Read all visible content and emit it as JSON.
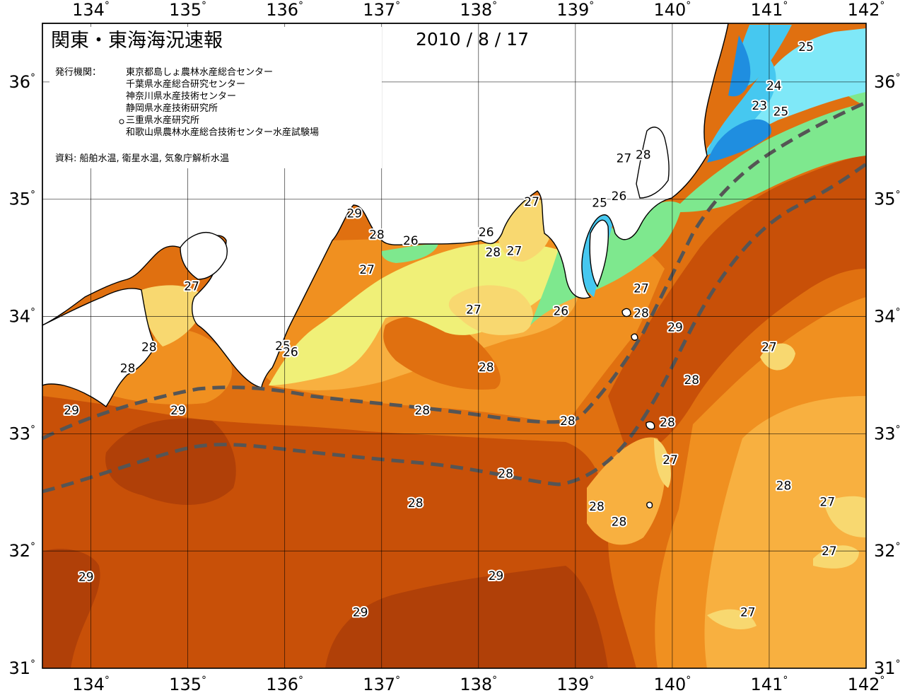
{
  "title": "関東・東海海況速報",
  "date": "2010 / 8 / 17",
  "publisher": {
    "label": "発行機関：",
    "orgs": [
      "東京都島しょ農林水産総合センター",
      "千葉県水産総合研究センター",
      "神奈川県水産技術センター",
      "静岡県水産技術研究所",
      "三重県水産研究所",
      "和歌山県農林水産総合技術センター水産試験場"
    ]
  },
  "source_note": "資料: 船舶水温, 衛星水温, 気象庁解析水温",
  "colors": {
    "t23": "#1f8ee0",
    "t24": "#46c8f0",
    "t25": "#7fe8f8",
    "t26": "#7ee88e",
    "t27": "#f0f078",
    "t27b": "#f8d870",
    "t28a": "#f8b040",
    "t28b": "#f09020",
    "t28c": "#e07010",
    "t29": "#c85008",
    "t29b": "#b04008",
    "land": "#ffffff",
    "current": "#555555"
  },
  "axes": {
    "lon_ticks": [
      "134",
      "135",
      "136",
      "137",
      "138",
      "139",
      "140",
      "141",
      "142"
    ],
    "lat_ticks": [
      "36",
      "35",
      "34",
      "33",
      "32",
      "31"
    ],
    "lon_range": [
      133.5,
      142.0
    ],
    "lat_range": [
      31.0,
      36.5
    ]
  },
  "isotherm_labels": [
    {
      "text": "25",
      "lon": 141.38,
      "lat": 36.3
    },
    {
      "text": "24",
      "lon": 141.05,
      "lat": 35.97
    },
    {
      "text": "23",
      "lon": 140.9,
      "lat": 35.8
    },
    {
      "text": "25",
      "lon": 141.12,
      "lat": 35.75
    },
    {
      "text": "27",
      "lon": 139.5,
      "lat": 35.35
    },
    {
      "text": "28",
      "lon": 139.7,
      "lat": 35.38
    },
    {
      "text": "29",
      "lon": 136.72,
      "lat": 34.88
    },
    {
      "text": "28",
      "lon": 136.95,
      "lat": 34.7
    },
    {
      "text": "26",
      "lon": 137.3,
      "lat": 34.65
    },
    {
      "text": "27",
      "lon": 136.85,
      "lat": 34.4
    },
    {
      "text": "26",
      "lon": 138.08,
      "lat": 34.72
    },
    {
      "text": "27",
      "lon": 138.55,
      "lat": 34.98
    },
    {
      "text": "28",
      "lon": 138.15,
      "lat": 34.55
    },
    {
      "text": "27",
      "lon": 138.37,
      "lat": 34.56
    },
    {
      "text": "25",
      "lon": 139.25,
      "lat": 34.97
    },
    {
      "text": "26",
      "lon": 139.45,
      "lat": 35.03
    },
    {
      "text": "27",
      "lon": 135.04,
      "lat": 34.26
    },
    {
      "text": "27",
      "lon": 137.95,
      "lat": 34.06
    },
    {
      "text": "26",
      "lon": 138.85,
      "lat": 34.05
    },
    {
      "text": "27",
      "lon": 139.68,
      "lat": 34.24
    },
    {
      "text": "28",
      "lon": 139.68,
      "lat": 34.03
    },
    {
      "text": "29",
      "lon": 140.03,
      "lat": 33.91
    },
    {
      "text": "28",
      "lon": 134.6,
      "lat": 33.74
    },
    {
      "text": "28",
      "lon": 134.38,
      "lat": 33.56
    },
    {
      "text": "25",
      "lon": 135.98,
      "lat": 33.75
    },
    {
      "text": "26",
      "lon": 136.06,
      "lat": 33.7
    },
    {
      "text": "28",
      "lon": 138.08,
      "lat": 33.57
    },
    {
      "text": "27",
      "lon": 141.0,
      "lat": 33.74
    },
    {
      "text": "28",
      "lon": 140.2,
      "lat": 33.46
    },
    {
      "text": "29",
      "lon": 133.8,
      "lat": 33.2
    },
    {
      "text": "29",
      "lon": 134.9,
      "lat": 33.2
    },
    {
      "text": "28",
      "lon": 137.42,
      "lat": 33.2
    },
    {
      "text": "28",
      "lon": 138.92,
      "lat": 33.11
    },
    {
      "text": "28",
      "lon": 139.95,
      "lat": 33.1
    },
    {
      "text": "27",
      "lon": 139.98,
      "lat": 32.78
    },
    {
      "text": "28",
      "lon": 138.28,
      "lat": 32.66
    },
    {
      "text": "28",
      "lon": 137.35,
      "lat": 32.41
    },
    {
      "text": "28",
      "lon": 139.22,
      "lat": 32.38
    },
    {
      "text": "28",
      "lon": 139.45,
      "lat": 32.25
    },
    {
      "text": "28",
      "lon": 141.15,
      "lat": 32.56
    },
    {
      "text": "27",
      "lon": 141.6,
      "lat": 32.42
    },
    {
      "text": "27",
      "lon": 141.62,
      "lat": 32.0
    },
    {
      "text": "29",
      "lon": 133.95,
      "lat": 31.78
    },
    {
      "text": "29",
      "lon": 138.18,
      "lat": 31.79
    },
    {
      "text": "29",
      "lon": 136.78,
      "lat": 31.48
    },
    {
      "text": "27",
      "lon": 140.78,
      "lat": 31.48
    }
  ]
}
